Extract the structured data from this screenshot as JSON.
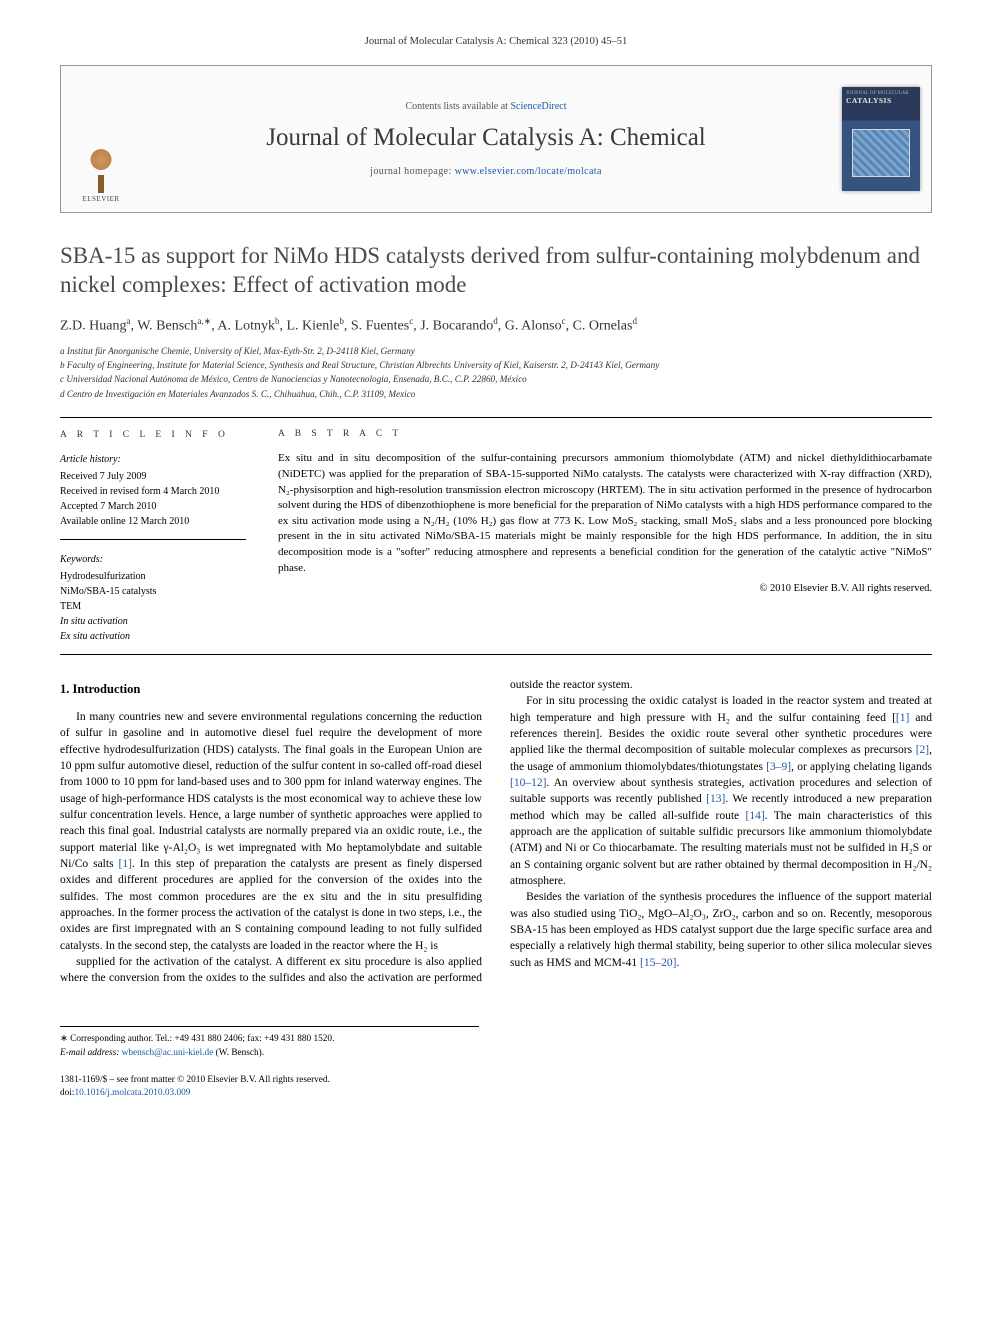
{
  "running_head": "Journal of Molecular Catalysis A: Chemical 323 (2010) 45–51",
  "masthead": {
    "contents_prefix": "Contents lists available at ",
    "contents_link": "ScienceDirect",
    "journal_name": "Journal of Molecular Catalysis A: Chemical",
    "homepage_prefix": "journal homepage: ",
    "homepage_url": "www.elsevier.com/locate/molcata",
    "publisher_label": "ELSEVIER",
    "cover_label": "CATALYSIS"
  },
  "title": "SBA-15 as support for NiMo HDS catalysts derived from sulfur-containing molybdenum and nickel complexes: Effect of activation mode",
  "authors_html": "Z.D. Huang<sup>a</sup>, W. Bensch<sup>a,∗</sup>, A. Lotnyk<sup>b</sup>, L. Kienle<sup>b</sup>, S. Fuentes<sup>c</sup>, J. Bocarando<sup>d</sup>, G. Alonso<sup>c</sup>, C. Ornelas<sup>d</sup>",
  "affiliations": [
    "a Institut für Anorganische Chemie, University of Kiel, Max-Eyth-Str. 2, D-24118 Kiel, Germany",
    "b Faculty of Engineering, Institute for Material Science, Synthesis and Real Structure, Christian Albrechts University of Kiel, Kaiserstr. 2, D-24143 Kiel, Germany",
    "c Universidad Nacional Autónoma de México, Centro de Nanociencias y Nanotecnología, Ensenada, B.C., C.P. 22860, México",
    "d Centro de Investigación en Materiales Avanzados S. C., Chihuahua, Chih., C.P. 31109, Mexico"
  ],
  "article_info": {
    "heading": "A R T I C L E   I N F O",
    "history_label": "Article history:",
    "history": [
      "Received 7 July 2009",
      "Received in revised form 4 March 2010",
      "Accepted 7 March 2010",
      "Available online 12 March 2010"
    ],
    "keywords_label": "Keywords:",
    "keywords": [
      "Hydrodesulfurization",
      "NiMo/SBA-15 catalysts",
      "TEM",
      "In situ activation",
      "Ex situ activation"
    ]
  },
  "abstract": {
    "heading": "A B S T R A C T",
    "text": "Ex situ and in situ decomposition of the sulfur-containing precursors ammonium thiomolybdate (ATM) and nickel diethyldithiocarbamate (NiDETC) was applied for the preparation of SBA-15-supported NiMo catalysts. The catalysts were characterized with X-ray diffraction (XRD), N₂-physisorption and high-resolution transmission electron microscopy (HRTEM). The in situ activation performed in the presence of hydrocarbon solvent during the HDS of dibenzothiophene is more beneficial for the preparation of NiMo catalysts with a high HDS performance compared to the ex situ activation mode using a N₂/H₂ (10% H₂) gas flow at 773 K. Low MoS₂ stacking, small MoS₂ slabs and a less pronounced pore blocking present in the in situ activated NiMo/SBA-15 materials might be mainly responsible for the high HDS performance. In addition, the in situ decomposition mode is a \"softer\" reducing atmosphere and represents a beneficial condition for the generation of the catalytic active \"NiMoS\" phase.",
    "copyright": "© 2010 Elsevier B.V. All rights reserved."
  },
  "body": {
    "section_heading": "1. Introduction",
    "p1": "In many countries new and severe environmental regulations concerning the reduction of sulfur in gasoline and in automotive diesel fuel require the development of more effective hydrodesulfurization (HDS) catalysts. The final goals in the European Union are 10 ppm sulfur automotive diesel, reduction of the sulfur content in so-called off-road diesel from 1000 to 10 ppm for land-based uses and to 300 ppm for inland waterway engines. The usage of high-performance HDS catalysts is the most economical way to achieve these low sulfur concentration levels. Hence, a large number of synthetic approaches were applied to reach this final goal. Industrial catalysts are normally prepared via an oxidic route, i.e., the support material like γ-Al₂O₃ is wet impregnated with Mo heptamolybdate and suitable Ni/Co salts [1]. In this step of preparation the catalysts are present as finely dispersed oxides and different procedures are applied for the conversion of the oxides into the sulfides. The most common procedures are the ex situ and the in situ presulfiding approaches. In the former process the activation of the catalyst is done in two steps, i.e., the oxides are first impregnated with an S containing compound leading to not fully sulfided catalysts. In the second step, the catalysts are loaded in the reactor where the H₂ is",
    "p2": "supplied for the activation of the catalyst. A different ex situ procedure is also applied where the conversion from the oxides to the sulfides and also the activation are performed outside the reactor system.",
    "p3": "For in situ processing the oxidic catalyst is loaded in the reactor system and treated at high temperature and high pressure with H₂ and the sulfur containing feed [[1] and references therein]. Besides the oxidic route several other synthetic procedures were applied like the thermal decomposition of suitable molecular complexes as precursors [2], the usage of ammonium thiomolybdates/thiotungstates [3–9], or applying chelating ligands [10–12]. An overview about synthesis strategies, activation procedures and selection of suitable supports was recently published [13]. We recently introduced a new preparation method which may be called all-sulfide route [14]. The main characteristics of this approach are the application of suitable sulfidic precursors like ammonium thiomolybdate (ATM) and Ni or Co thiocarbamate. The resulting materials must not be sulfided in H₂S or an S containing organic solvent but are rather obtained by thermal decomposition in H₂/N₂ atmosphere.",
    "p4": "Besides the variation of the synthesis procedures the influence of the support material was also studied using TiO₂, MgO–Al₂O₃, ZrO₂, carbon and so on. Recently, mesoporous SBA-15 has been employed as HDS catalyst support due the large specific surface area and especially a relatively high thermal stability, being superior to other silica molecular sieves such as HMS and MCM-41 [15–20]."
  },
  "footnote": {
    "corresponding": "∗ Corresponding author. Tel.: +49 431 880 2406; fax: +49 431 880 1520.",
    "email_label": "E-mail address: ",
    "email": "wbensch@ac.uni-kiel.de",
    "email_suffix": " (W. Bensch)."
  },
  "footer": {
    "issn_line": "1381-1169/$ – see front matter © 2010 Elsevier B.V. All rights reserved.",
    "doi_label": "doi:",
    "doi": "10.1016/j.molcata.2010.03.009"
  }
}
